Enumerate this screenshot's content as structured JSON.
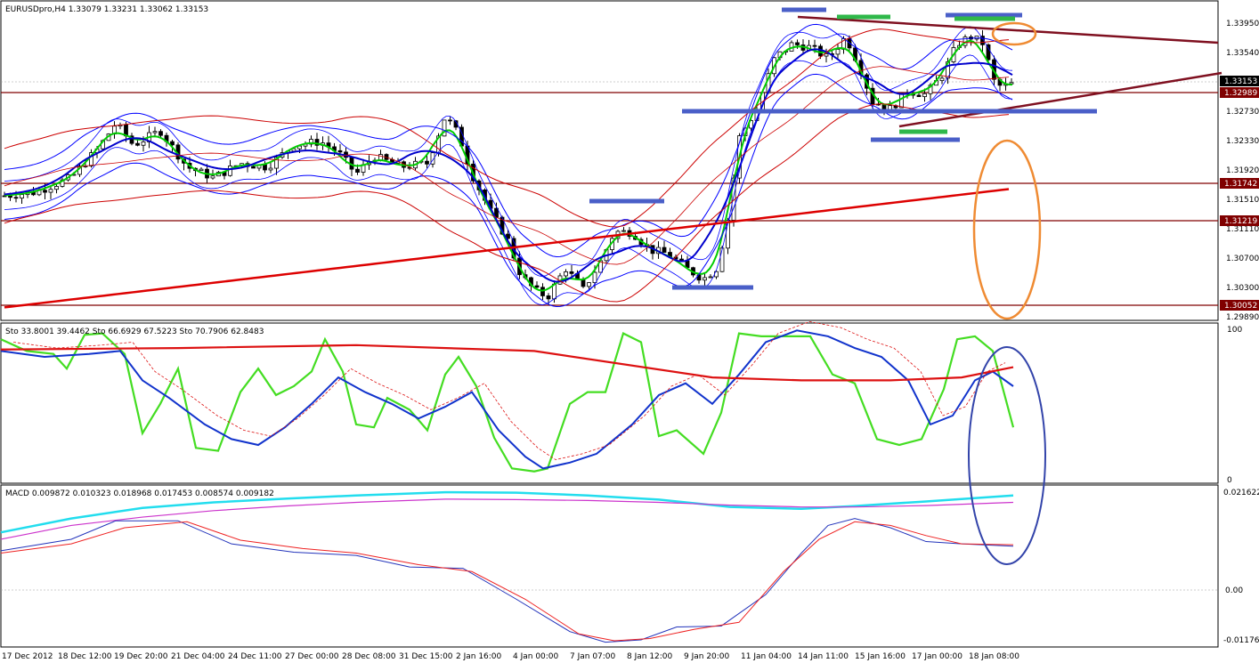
{
  "window": {
    "symbol": "EURUSDpro",
    "timeframe": "H4",
    "ohlc_header": "EURUSDpro,H4  1.33079 1.33231 1.33062 1.33153"
  },
  "colors": {
    "candle_bull": "#ffffff",
    "candle_bear": "#000000",
    "bb_blue": "#0000ff",
    "bb_red": "#cc0000",
    "sma_green": "#00cc00",
    "sma_blue": "#0000cc",
    "sma_red": "#dd0000",
    "level_line": "#800000",
    "trend_line": "#7f1020",
    "annot_blue": "#4a5fc8",
    "annot_green": "#2fb84a",
    "ellipse_orange": "#ef8b33",
    "ellipse_blue": "#3344aa",
    "macd_cyan": "#22ddee",
    "macd_magenta": "#cc33cc",
    "macd_blue": "#2233bb",
    "macd_red": "#ee2222",
    "stoch_green": "#44dd22",
    "stoch_blue": "#1133cc",
    "stoch_red": "#dd1111"
  },
  "price_axis": {
    "ticks": [
      "1.33950",
      "1.33540",
      "1.32730",
      "1.32330",
      "1.31920",
      "1.31510",
      "1.31110",
      "1.30700",
      "1.30300",
      "1.29890"
    ],
    "labels": [
      {
        "text": "1.33153",
        "bg": "#000000",
        "fg": "#ffffff"
      },
      {
        "text": "1.32989",
        "bg": "#800000",
        "fg": "#ffffff"
      },
      {
        "text": "1.31742",
        "bg": "#800000",
        "fg": "#ffffff"
      },
      {
        "text": "1.31219",
        "bg": "#800000",
        "fg": "#ffffff"
      },
      {
        "text": "1.30052",
        "bg": "#800000",
        "fg": "#ffffff"
      }
    ]
  },
  "stochastic": {
    "header": "Sto 33.8001 39.4462  Sto 66.6929 67.5223  Sto 70.7906 62.8483",
    "axis_top": "100",
    "axis_bottom": "0"
  },
  "macd": {
    "header": "MACD 0.009872 0.010323 0.018968 0.017453 0.008574 0.009182",
    "axis_top": "0.021622",
    "axis_mid": "0.00",
    "axis_bottom": "-0.01176"
  },
  "time_axis": [
    "17 Dec 2012",
    "18 Dec 12:00",
    "19 Dec 20:00",
    "21 Dec 04:00",
    "24 Dec 11:00",
    "27 Dec 00:00",
    "28 Dec 08:00",
    "31 Dec 15:00",
    "2 Jan 16:00",
    "4 Jan 00:00",
    "7 Jan 07:00",
    "8 Jan 12:00",
    "9 Jan 20:00",
    "11 Jan 04:00",
    "14 Jan 11:00",
    "15 Jan 16:00",
    "17 Jan 00:00",
    "18 Jan 08:00"
  ]
}
